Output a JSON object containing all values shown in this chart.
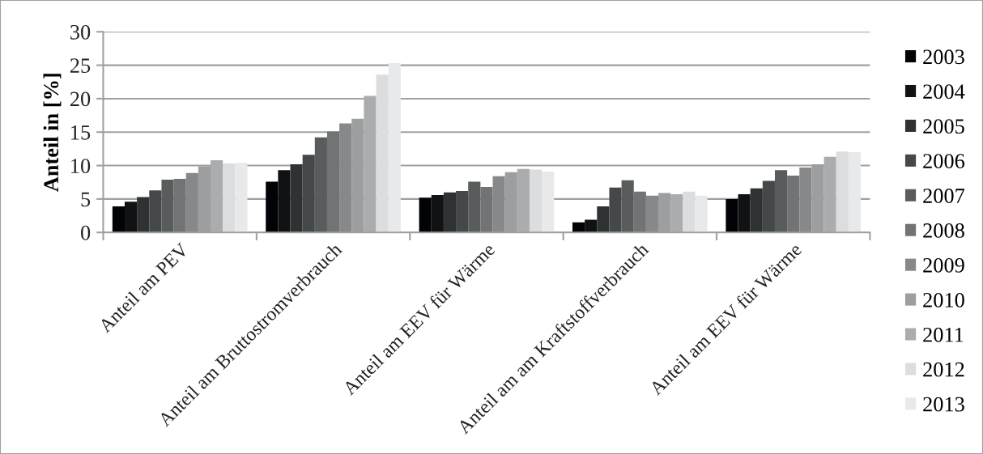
{
  "chart_data": {
    "type": "bar",
    "ylabel": "Anteil in [%]",
    "categories": [
      "Anteil am PEV",
      "Anteil am Bruttostromverbrauch",
      "Anteil am EEV für Wärme",
      "Anteil am am Kraftstoffverbrauch",
      "Anteil am EEV für Wärme"
    ],
    "series": [
      {
        "name": "2003",
        "color": "#020306",
        "values": [
          3.9,
          7.6,
          5.2,
          1.5,
          5.0
        ]
      },
      {
        "name": "2004",
        "color": "#111214",
        "values": [
          4.6,
          9.3,
          5.6,
          1.9,
          5.7
        ]
      },
      {
        "name": "2005",
        "color": "#2f3233",
        "values": [
          5.3,
          10.2,
          6.0,
          3.9,
          6.6
        ]
      },
      {
        "name": "2006",
        "color": "#45484a",
        "values": [
          6.3,
          11.6,
          6.2,
          6.7,
          7.7
        ]
      },
      {
        "name": "2007",
        "color": "#595c5d",
        "values": [
          7.9,
          14.2,
          7.6,
          7.8,
          9.3
        ]
      },
      {
        "name": "2008",
        "color": "#727374",
        "values": [
          8.0,
          15.1,
          6.8,
          6.1,
          8.5
        ]
      },
      {
        "name": "2009",
        "color": "#878889",
        "values": [
          8.9,
          16.3,
          8.4,
          5.5,
          9.7
        ]
      },
      {
        "name": "2010",
        "color": "#9d9e9f",
        "values": [
          9.9,
          17.0,
          9.0,
          5.9,
          10.2
        ]
      },
      {
        "name": "2011",
        "color": "#aaacad",
        "values": [
          10.8,
          20.4,
          9.5,
          5.7,
          11.3
        ]
      },
      {
        "name": "2012",
        "color": "#dcdddf",
        "values": [
          10.3,
          23.6,
          9.4,
          6.1,
          12.1
        ]
      },
      {
        "name": "2013",
        "color": "#e8e9eb",
        "values": [
          10.4,
          25.3,
          9.1,
          5.5,
          12.0
        ]
      }
    ],
    "ylim": [
      0,
      30
    ],
    "yticks": [
      0,
      5,
      10,
      15,
      20,
      25,
      30
    ],
    "grid": "y",
    "legend": "right"
  }
}
